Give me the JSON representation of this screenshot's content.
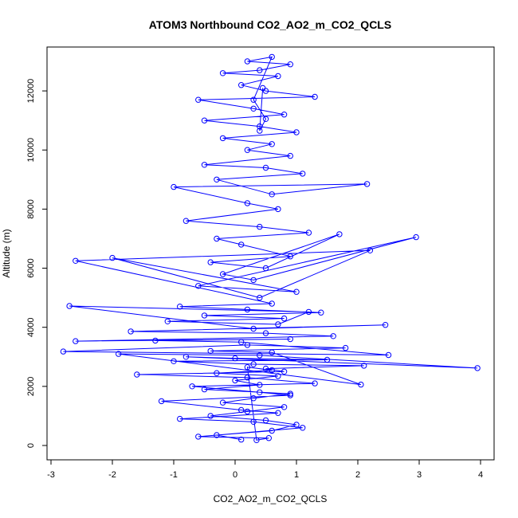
{
  "chart_data": {
    "type": "scatter",
    "title": "ATOM3 Northbound CO2_AO2_m_CO2_QCLS",
    "xlabel": "CO2_AO2_m_CO2_QCLS",
    "ylabel": "Altitude (m)",
    "xlim": [
      -3,
      4
    ],
    "ylim": [
      0,
      13000
    ],
    "x_ticks": [
      -3,
      -2,
      -1,
      0,
      1,
      2,
      3,
      4
    ],
    "y_ticks": [
      0,
      2000,
      4000,
      6000,
      8000,
      10000,
      12000
    ],
    "x_tick_labels": [
      "-3",
      "-2",
      "-1",
      "0",
      "1",
      "2",
      "3",
      "4"
    ],
    "y_tick_labels": [
      "0",
      "2000",
      "4000",
      "6000",
      "8000",
      "10000",
      "12000"
    ],
    "grid": false,
    "legend": "none",
    "marker": "open-circle",
    "connected": true,
    "series_color": "#0000ff",
    "series": [
      {
        "x": [
          0.1,
          -0.3,
          0.6,
          1.0,
          0.5,
          -0.4,
          0.2,
          0.8,
          -0.2,
          0.3,
          0.9,
          -0.5,
          0.4,
          0.0,
          0.7,
          -0.3,
          0.6,
          0.2,
          0.35,
          0.55,
          -0.6,
          1.1,
          0.3,
          -0.9,
          0.7,
          0.1,
          -1.2,
          0.9,
          0.4,
          -0.7,
          1.3,
          0.2,
          -1.6,
          0.8,
          0.5,
          2.1,
          0.3,
          -1.0,
          1.5,
          0.0,
          -0.8,
          3.95,
          0.4,
          -1.9,
          2.05,
          0.6,
          -0.4,
          1.8,
          0.2,
          -2.8,
          2.5,
          0.1,
          -1.3,
          0.9,
          -2.6,
          1.6,
          0.5,
          -1.7,
          2.45,
          0.3,
          -2.7,
          1.2,
          0.7,
          -1.1,
          0.8,
          -0.5,
          1.4,
          0.2,
          -0.9,
          0.6,
          -2.6,
          2.2,
          0.4,
          -2.0,
          1.0,
          -0.6,
          2.95,
          0.3,
          -0.2,
          1.7,
          0.5,
          -0.4,
          0.9,
          0.1,
          -0.3,
          1.2,
          0.4,
          -0.8,
          0.7,
          0.2,
          -1.0,
          2.15,
          0.6,
          -0.3,
          1.1,
          0.5,
          -0.5,
          0.9,
          0.2,
          0.6,
          -0.2,
          1.0,
          0.4,
          -0.5,
          0.8,
          0.3,
          -0.6,
          1.3,
          0.5,
          0.1,
          0.7,
          -0.2,
          0.4,
          0.9,
          0.2,
          0.6,
          0.3,
          0.5,
          0.4,
          0.45
        ],
        "y": [
          200,
          350,
          500,
          700,
          850,
          1000,
          1150,
          1300,
          1450,
          1600,
          1750,
          1900,
          2050,
          2200,
          2350,
          2450,
          2550,
          2650,
          180,
          250,
          300,
          600,
          800,
          900,
          1100,
          1200,
          1500,
          1700,
          1800,
          2000,
          2100,
          2300,
          2400,
          2500,
          2600,
          2700,
          2750,
          2850,
          2900,
          2950,
          3000,
          2620,
          3050,
          3100,
          2060,
          3150,
          3200,
          3300,
          3400,
          3180,
          3060,
          3500,
          3550,
          3600,
          3530,
          3700,
          3800,
          3860,
          4080,
          3950,
          4720,
          4520,
          4100,
          4200,
          4300,
          4400,
          4500,
          4600,
          4700,
          4800,
          6250,
          6600,
          5000,
          6350,
          5200,
          5400,
          7050,
          5600,
          5800,
          7150,
          6000,
          6200,
          6400,
          6800,
          7000,
          7200,
          7400,
          7600,
          8000,
          8200,
          8750,
          8850,
          8500,
          9000,
          9200,
          9400,
          9500,
          9800,
          10000,
          10200,
          10400,
          10600,
          10800,
          11000,
          11200,
          11400,
          11700,
          11800,
          12000,
          12200,
          12500,
          12600,
          12700,
          12900,
          13000,
          13150,
          11700,
          11050,
          10650,
          12100
        ]
      }
    ]
  }
}
